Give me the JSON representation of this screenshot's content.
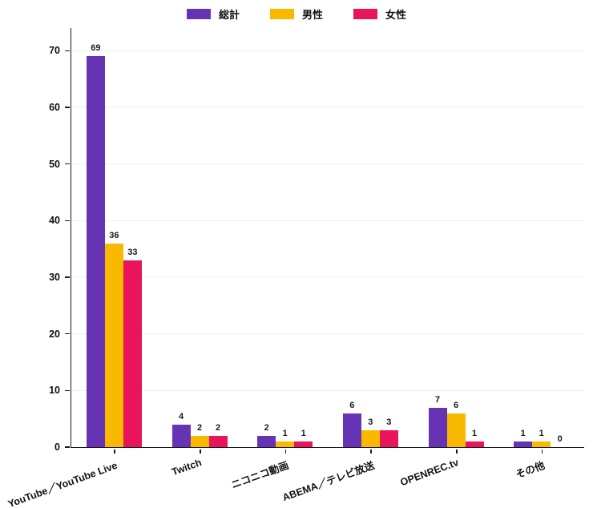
{
  "colors": {
    "total": "#6733B5",
    "male": "#F9B900",
    "female": "#E9145B",
    "axis": "#1a1a1a",
    "grid": "#efefef",
    "text": "#111111"
  },
  "legend": {
    "items": [
      {
        "key": "total",
        "label": "総計"
      },
      {
        "key": "male",
        "label": "男性"
      },
      {
        "key": "female",
        "label": "女性"
      }
    ]
  },
  "chart_data": {
    "type": "bar",
    "title": "",
    "xlabel": "",
    "ylabel": "",
    "categories": [
      "YouTube／YouTube Live",
      "Twitch",
      "ニコニコ動画",
      "ABEMA／テレビ放送",
      "OPENREC.tv",
      "その他"
    ],
    "series": [
      {
        "key": "total",
        "name": "総計",
        "color": "#6733B5",
        "values": [
          69,
          4,
          2,
          6,
          7,
          1
        ]
      },
      {
        "key": "male",
        "name": "男性",
        "color": "#F9B900",
        "values": [
          36,
          2,
          1,
          3,
          6,
          1
        ]
      },
      {
        "key": "female",
        "name": "女性",
        "color": "#E9145B",
        "values": [
          33,
          2,
          1,
          3,
          1,
          0
        ]
      }
    ],
    "ylim": [
      0,
      74
    ],
    "yticks": [
      0,
      10,
      20,
      30,
      40,
      50,
      60,
      70
    ],
    "grid": true,
    "legend_position": "top",
    "bar_value_labels": true
  }
}
